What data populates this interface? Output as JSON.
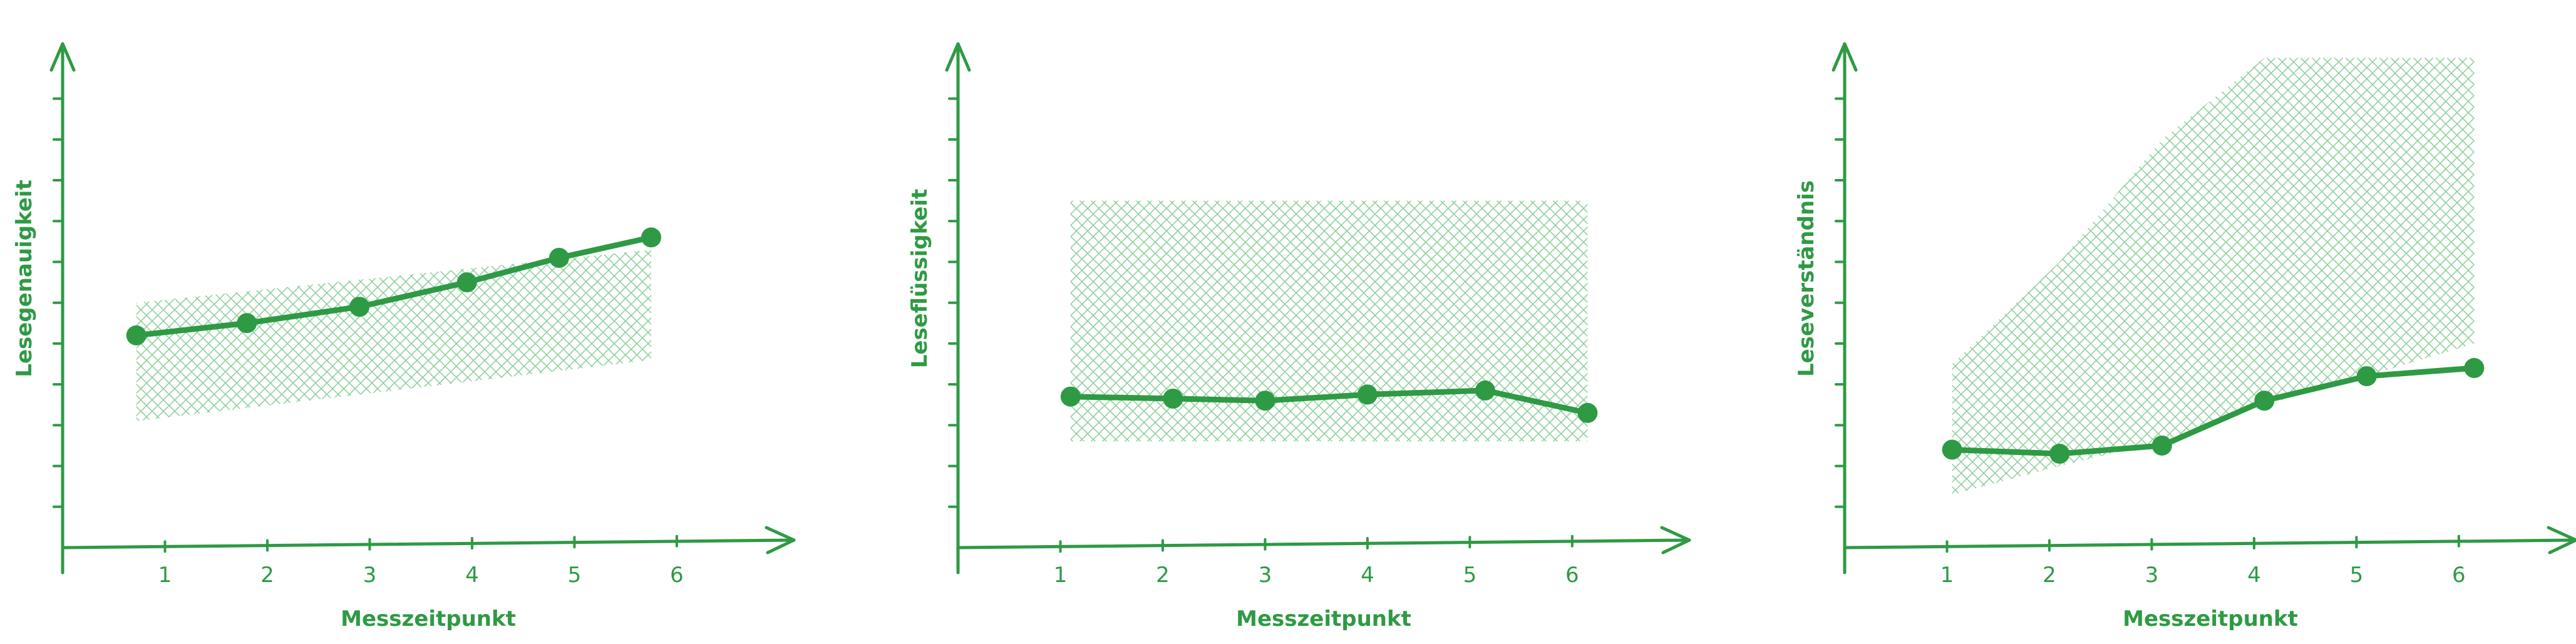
{
  "colors": {
    "line": "#2e9a44",
    "band": "#8fd09c",
    "axis": "#2e9a44"
  },
  "chart_data": [
    {
      "type": "line",
      "title": "",
      "xlabel": "Messzeitpunkt",
      "ylabel": "Lesegenauigkeit",
      "x_ticks": [
        "1",
        "2",
        "3",
        "4",
        "5",
        "6"
      ],
      "xlim": [
        0.0,
        6.9
      ],
      "ylim": [
        0,
        11.5
      ],
      "y_tick_count": 11,
      "grid": false,
      "series": [
        {
          "x": [
            0.72,
            1.8,
            2.9,
            3.95,
            4.85,
            5.75
          ],
          "y": [
            5.2,
            5.5,
            5.9,
            6.5,
            7.1,
            7.6
          ]
        }
      ],
      "band": {
        "x": [
          0.72,
          5.75
        ],
        "lower": [
          3.1,
          4.6
        ],
        "upper": [
          6.0,
          7.3
        ]
      }
    },
    {
      "type": "line",
      "title": "",
      "xlabel": "Messzeitpunkt",
      "ylabel": "Leseflüssigkeit",
      "x_ticks": [
        "1",
        "2",
        "3",
        "4",
        "5",
        "6"
      ],
      "xlim": [
        0.0,
        6.9
      ],
      "ylim": [
        0,
        11.5
      ],
      "y_tick_count": 11,
      "grid": false,
      "series": [
        {
          "x": [
            1.1,
            2.1,
            3.0,
            4.0,
            5.15,
            6.15
          ],
          "y": [
            3.7,
            3.65,
            3.6,
            3.75,
            3.85,
            3.3
          ]
        }
      ],
      "band": {
        "x": [
          1.1,
          6.15
        ],
        "lower": [
          2.6,
          2.6
        ],
        "upper": [
          8.5,
          8.5
        ]
      }
    },
    {
      "type": "line",
      "title": "",
      "xlabel": "Messzeitpunkt",
      "ylabel": "Leseverständnis",
      "x_ticks": [
        "1",
        "2",
        "3",
        "4",
        "5",
        "6"
      ],
      "xlim": [
        0.0,
        6.9
      ],
      "ylim": [
        0,
        11.5
      ],
      "y_tick_count": 11,
      "grid": false,
      "series": [
        {
          "x": [
            1.05,
            2.1,
            3.1,
            4.1,
            5.1,
            6.15
          ],
          "y": [
            2.4,
            2.3,
            2.5,
            3.6,
            4.2,
            4.4
          ]
        }
      ],
      "band": {
        "x": [
          1.05,
          2.1,
          3.1,
          4.1,
          5.1,
          6.15
        ],
        "lower": [
          1.3,
          2.0,
          2.6,
          3.5,
          4.2,
          5.0
        ],
        "upper": [
          4.5,
          7.0,
          10.0,
          12.0,
          12.0,
          12.0
        ]
      }
    }
  ]
}
